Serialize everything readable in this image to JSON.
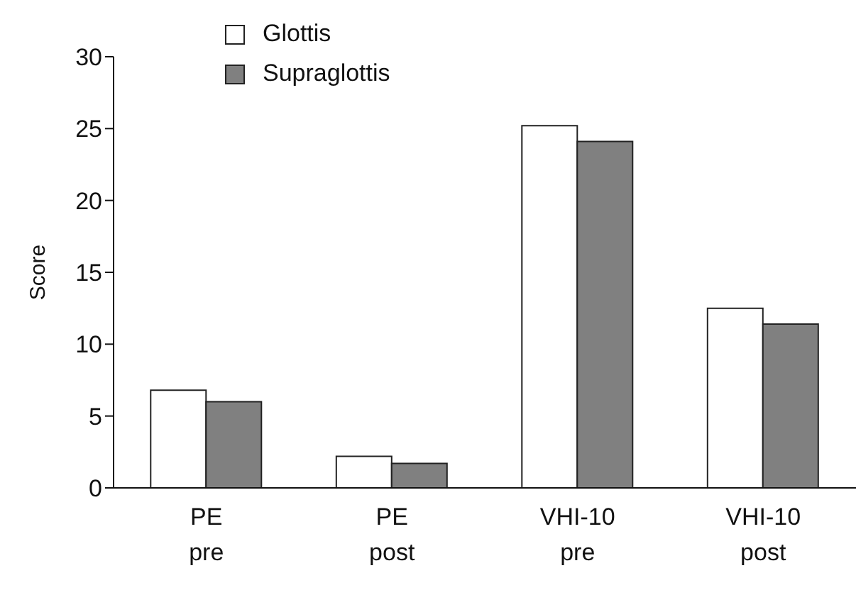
{
  "chart_data": {
    "type": "bar",
    "ylabel": "Score",
    "categories": [
      "PE pre",
      "PE post",
      "VHI-10 pre",
      "VHI-10 post"
    ],
    "series": [
      {
        "name": "Glottis",
        "color": "#ffffff",
        "values": [
          6.8,
          2.2,
          25.2,
          12.5
        ]
      },
      {
        "name": "Supraglottis",
        "color": "#808080",
        "values": [
          6.0,
          1.7,
          24.1,
          11.4
        ]
      }
    ],
    "ylim": [
      0,
      30
    ],
    "yticks": [
      0,
      5,
      10,
      15,
      20,
      25,
      30
    ],
    "grid": false,
    "legend": "top left"
  }
}
